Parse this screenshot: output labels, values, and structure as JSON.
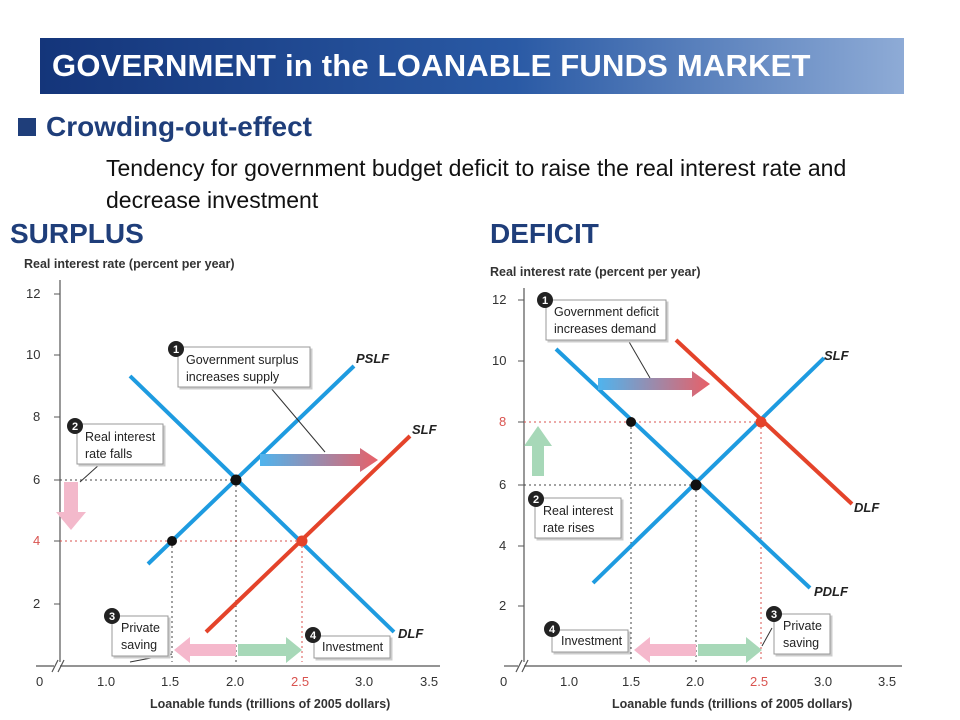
{
  "title": "GOVERNMENT in the LOANABLE FUNDS MARKET",
  "bullet": "Crowding-out-effect",
  "description": "Tendency for government budget deficit to raise the real interest rate and decrease investment",
  "left": {
    "heading": "SURPLUS",
    "y_axis_label": "Real interest rate (percent per year)",
    "x_axis_label": "Loanable funds (trillions of 2005 dollars)",
    "y_ticks": [
      "12",
      "10",
      "8",
      "6",
      "4",
      "2"
    ],
    "x_ticks": [
      "0",
      "1.0",
      "1.5",
      "2.0",
      "2.5",
      "3.0",
      "3.5"
    ],
    "curves": [
      "PSLF",
      "SLF",
      "DLF"
    ],
    "callouts": [
      {
        "num": "1",
        "lines": [
          "Government surplus",
          "increases supply"
        ]
      },
      {
        "num": "2",
        "lines": [
          "Real interest",
          "rate falls"
        ]
      },
      {
        "num": "3",
        "lines": [
          "Private",
          "saving"
        ]
      },
      {
        "num": "4",
        "lines": [
          "Investment"
        ]
      }
    ]
  },
  "right": {
    "heading": "DEFICIT",
    "y_axis_label": "Real interest rate (percent per year)",
    "x_axis_label": "Loanable funds (trillions of 2005 dollars)",
    "y_ticks": [
      "12",
      "10",
      "8",
      "6",
      "4",
      "2"
    ],
    "x_ticks": [
      "0",
      "1.0",
      "1.5",
      "2.0",
      "2.5",
      "3.0",
      "3.5"
    ],
    "curves": [
      "SLF",
      "DLF",
      "PDLF"
    ],
    "callouts": [
      {
        "num": "1",
        "lines": [
          "Government deficit",
          "increases demand"
        ]
      },
      {
        "num": "2",
        "lines": [
          "Real interest",
          "rate rises"
        ]
      },
      {
        "num": "3",
        "lines": [
          "Private",
          "saving"
        ]
      },
      {
        "num": "4",
        "lines": [
          "Investment"
        ]
      }
    ]
  },
  "colors": {
    "blue_curve": "#1e9be0",
    "red_curve": "#e4432a",
    "highlight_tick": "#d9534f",
    "heading": "#1f3e7a"
  }
}
